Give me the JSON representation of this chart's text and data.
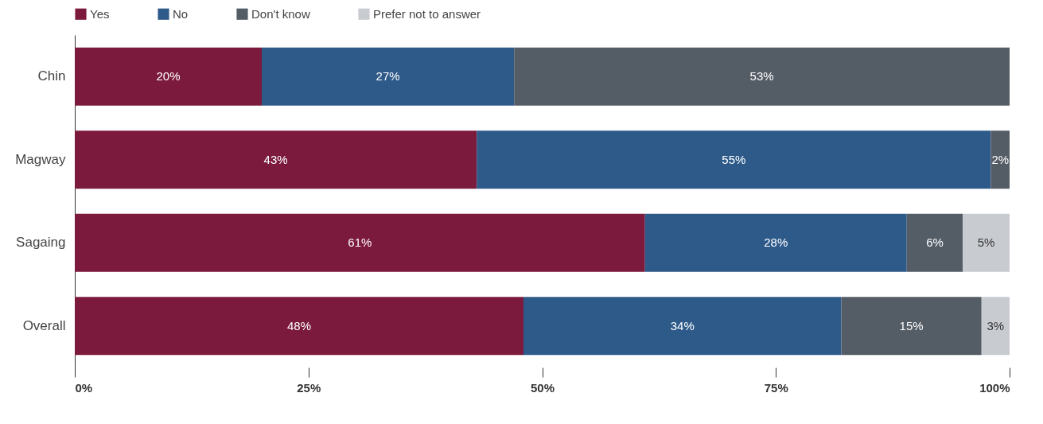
{
  "chart_data": {
    "type": "bar",
    "orientation": "horizontal",
    "stacked": true,
    "legend": "top",
    "grid": false,
    "categories": [
      "Chin",
      "Magway",
      "Sagaing",
      "Overall"
    ],
    "series": [
      {
        "name": "Yes",
        "color": "#7b1a3c",
        "values": [
          20,
          43,
          61,
          48
        ],
        "value_labels": [
          "20%",
          "43%",
          "61%",
          "48%"
        ]
      },
      {
        "name": "No",
        "color": "#2e5a8a",
        "values": [
          27,
          55,
          28,
          34
        ],
        "value_labels": [
          "27%",
          "55%",
          "28%",
          "34%"
        ]
      },
      {
        "name": "Don't know",
        "color": "#545c66",
        "values": [
          53,
          2,
          6,
          15
        ],
        "value_labels": [
          "53%",
          "2%",
          "6%",
          "15%"
        ]
      },
      {
        "name": "Prefer not to answer",
        "color": "#c8cbd0",
        "values": [
          null,
          null,
          5,
          3
        ],
        "value_labels": [
          null,
          null,
          "5%",
          "3%"
        ]
      }
    ],
    "xlim": [
      0,
      100
    ],
    "xticks": [
      {
        "value": 0,
        "label": "0%"
      },
      {
        "value": 25,
        "label": "25%"
      },
      {
        "value": 50,
        "label": "50%"
      },
      {
        "value": 75,
        "label": "75%"
      },
      {
        "value": 100,
        "label": "100%"
      }
    ]
  }
}
